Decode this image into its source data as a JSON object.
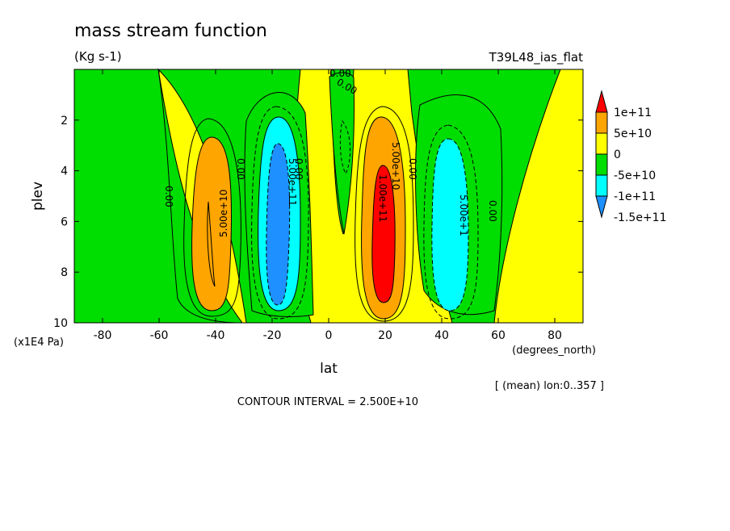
{
  "header": {
    "title": "mass stream function",
    "units": "(Kg s-1)",
    "run_name": "T39L48_ias_flat"
  },
  "footer": {
    "axis_units_note": "(x1E4 Pa)",
    "x_units": "(degrees_north)",
    "mean_note": "[ (mean) lon:0..357 ]",
    "contour_interval": "CONTOUR INTERVAL = 2.500E+10"
  },
  "chart_data": {
    "type": "heatmap",
    "subtype": "filled-contour",
    "title": "mass stream function",
    "units": "(Kg s-1)",
    "xlabel": "lat",
    "ylabel": "plev",
    "xlim": [
      -90,
      90
    ],
    "ylim": [
      10,
      0
    ],
    "x_ticks": [
      -80,
      -60,
      -40,
      -20,
      0,
      20,
      40,
      60,
      80
    ],
    "y_ticks": [
      2,
      4,
      6,
      8,
      10
    ],
    "y_tick_scale": "x1E4 Pa",
    "contour_interval": 25000000000.0,
    "colorbar": {
      "levels": [
        "1e+11",
        "5e+10",
        "0",
        "-5e+10",
        "-1e+11",
        "-1.5e+11"
      ],
      "colors": [
        "#ff0000",
        "#ffa500",
        "#ffff00",
        "#00dd00",
        "#00ffff",
        "#1e90ff"
      ]
    },
    "contour_labels": [
      "5.00e+10",
      "5.00e+11",
      "1.00e+11",
      "5.00e+10",
      "5.00e+1",
      "0.00",
      "0.00",
      "0.00",
      "0.00",
      "0.00",
      "0.00",
      "0.00"
    ],
    "cells": [
      {
        "name": "southern positive cell",
        "lat_center": -40,
        "plev_center": 6.0,
        "max_level": "5e+10"
      },
      {
        "name": "southern negative cell",
        "lat_center": -18,
        "plev_center": 6.0,
        "min_level": "-1.5e+11"
      },
      {
        "name": "northern positive cell",
        "lat_center": 20,
        "plev_center": 6.0,
        "max_level": "1e+11"
      },
      {
        "name": "northern negative cell",
        "lat_center": 43,
        "plev_center": 6.0,
        "min_level": "-1e+11"
      }
    ]
  }
}
